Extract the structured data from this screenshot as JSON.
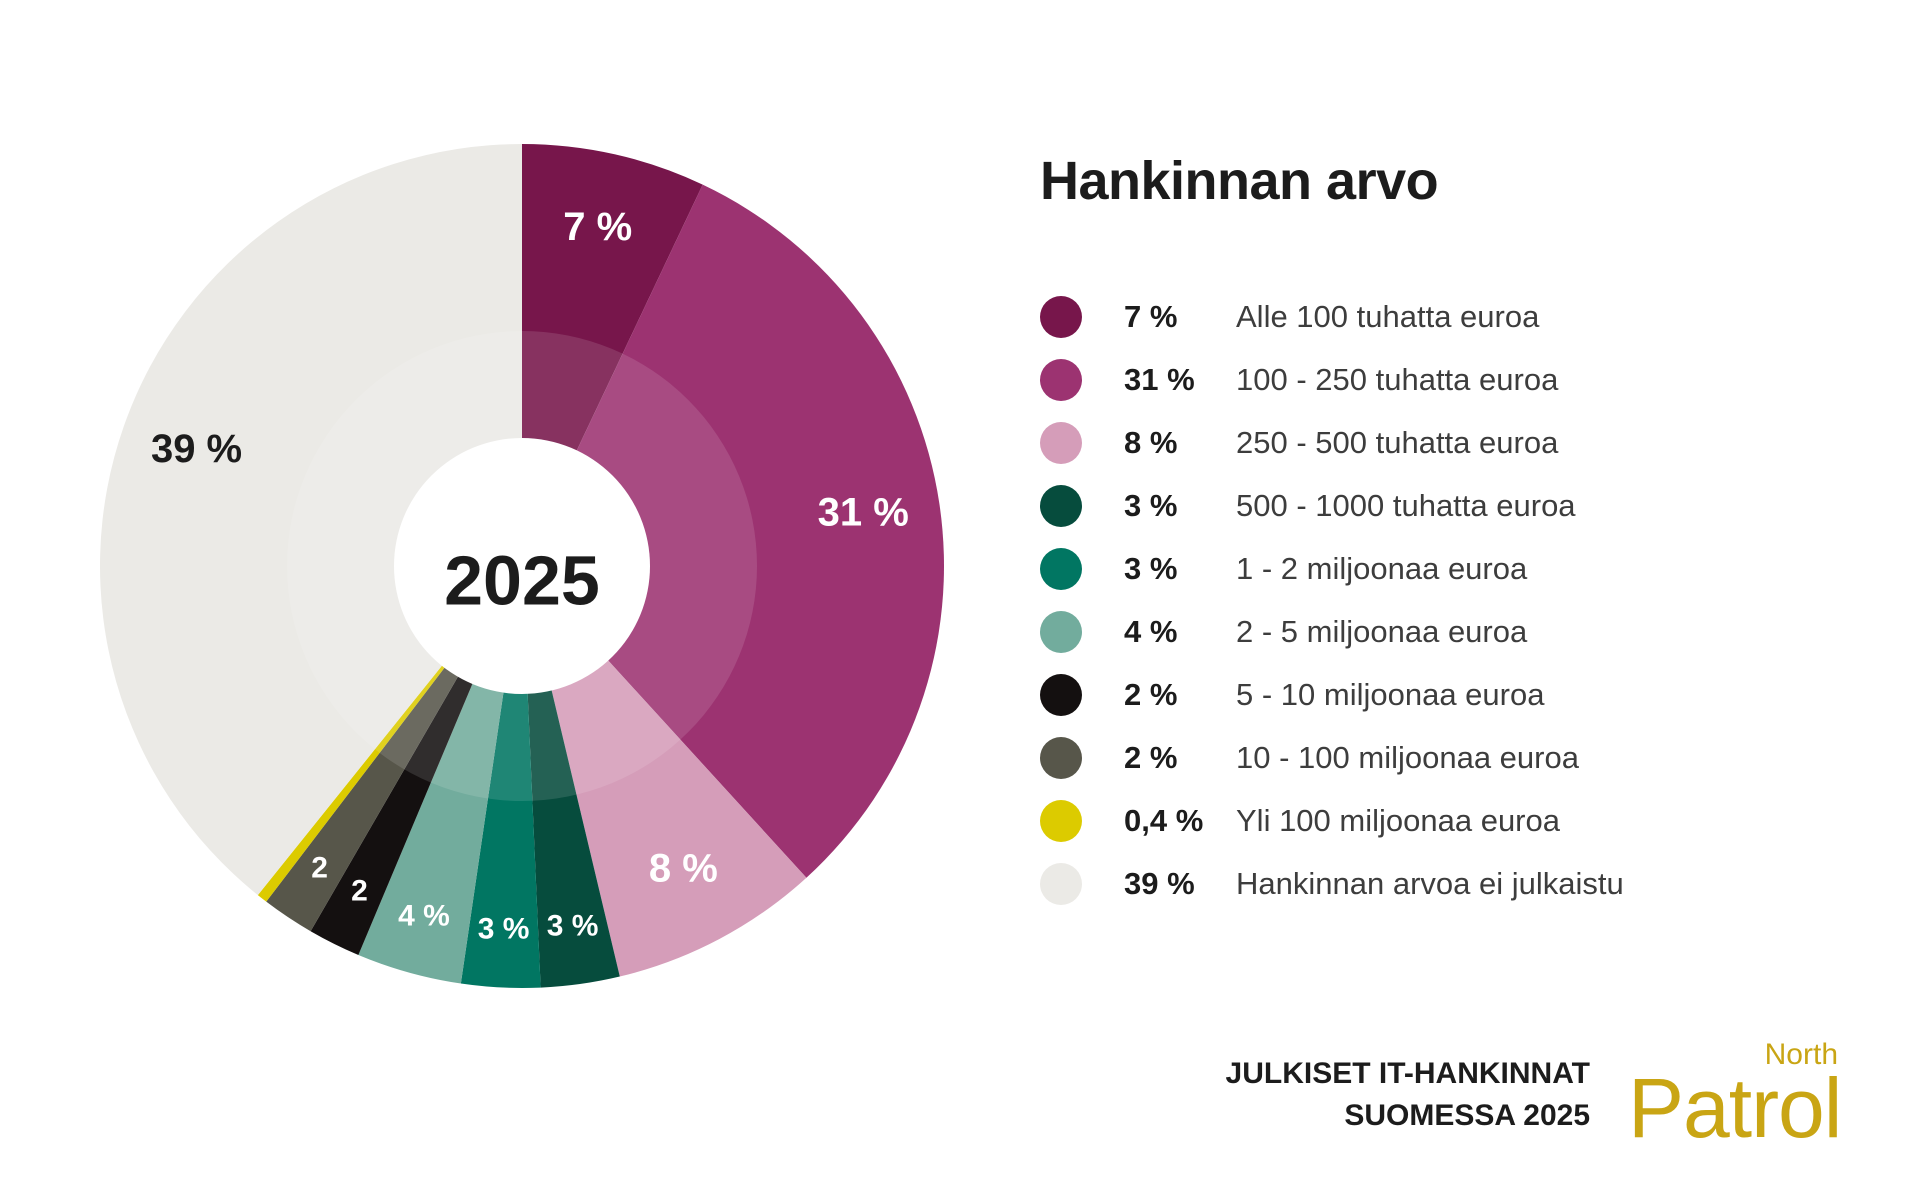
{
  "chart_data": {
    "type": "pie",
    "title": "Hankinnan arvo",
    "center_label": "2025",
    "slices": [
      {
        "label": "Alle 100 tuhatta euroa",
        "value": 7,
        "pct_text": "7 %",
        "slice_label": "7 %",
        "color": "#77164b",
        "text_color": "#ffffff"
      },
      {
        "label": "100 - 250 tuhatta euroa",
        "value": 31,
        "pct_text": "31 %",
        "slice_label": "31 %",
        "color": "#9c3371",
        "text_color": "#ffffff"
      },
      {
        "label": "250 - 500 tuhatta euroa",
        "value": 8,
        "pct_text": "8 %",
        "slice_label": "8 %",
        "color": "#d59db9",
        "text_color": "#ffffff"
      },
      {
        "label": "500 - 1000 tuhatta euroa",
        "value": 3,
        "pct_text": "3 %",
        "slice_label": "3 %",
        "color": "#064c3d",
        "text_color": "#ffffff"
      },
      {
        "label": "1 - 2 miljoonaa euroa",
        "value": 3,
        "pct_text": "3 %",
        "slice_label": "3 %",
        "color": "#017662",
        "text_color": "#ffffff"
      },
      {
        "label": "2 - 5 miljoonaa euroa",
        "value": 4,
        "pct_text": "4 %",
        "slice_label": "4 %",
        "color": "#72ac9d",
        "text_color": "#ffffff"
      },
      {
        "label": "5 - 10 miljoonaa euroa",
        "value": 2,
        "pct_text": "2 %",
        "slice_label": "2",
        "color": "#141010",
        "text_color": "#ffffff"
      },
      {
        "label": "10 - 100 miljoonaa euroa",
        "value": 2,
        "pct_text": "2 %",
        "slice_label": "2",
        "color": "#57564a",
        "text_color": "#ffffff"
      },
      {
        "label": "Yli 100 miljoonaa euroa",
        "value": 0.4,
        "pct_text": "0,4 %",
        "slice_label": "",
        "color": "#dccb00",
        "text_color": "#ffffff"
      },
      {
        "label": "Hankinnan arvoa ei julkaistu",
        "value": 39,
        "pct_text": "39 %",
        "slice_label": "39 %",
        "color": "#ebeae6",
        "text_color": "#1c1c1c"
      }
    ]
  },
  "footer": {
    "line1": "JULKISET IT-HANKINNAT",
    "line2": "SUOMESSA 2025"
  },
  "logo": {
    "small": "North",
    "big": "Patrol",
    "color": "#c9a514"
  }
}
